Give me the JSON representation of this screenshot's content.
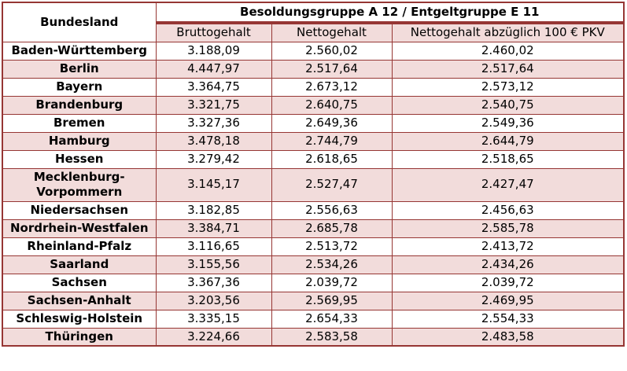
{
  "table": {
    "header": {
      "col_bundesland": "Bundesland",
      "group_title": "Besoldungsgruppe A 12 / Entgeltgruppe E 11",
      "columns": [
        "Bruttogehalt",
        "Nettogehalt",
        "Nettogehalt abzüglich 100 € PKV"
      ]
    },
    "rows": [
      {
        "state": "Baden-Württemberg",
        "brutto": "3.188,09",
        "netto": "2.560,02",
        "netto_pkv": "2.460,02"
      },
      {
        "state": "Berlin",
        "brutto": "4.447,97",
        "netto": "2.517,64",
        "netto_pkv": "2.517,64"
      },
      {
        "state": "Bayern",
        "brutto": "3.364,75",
        "netto": "2.673,12",
        "netto_pkv": "2.573,12"
      },
      {
        "state": "Brandenburg",
        "brutto": "3.321,75",
        "netto": "2.640,75",
        "netto_pkv": "2.540,75"
      },
      {
        "state": "Bremen",
        "brutto": "3.327,36",
        "netto": "2.649,36",
        "netto_pkv": "2.549,36"
      },
      {
        "state": "Hamburg",
        "brutto": "3.478,18",
        "netto": "2.744,79",
        "netto_pkv": "2.644,79"
      },
      {
        "state": "Hessen",
        "brutto": "3.279,42",
        "netto": "2.618,65",
        "netto_pkv": "2.518,65"
      },
      {
        "state": "Mecklenburg-Vorpommern",
        "brutto": "3.145,17",
        "netto": "2.527,47",
        "netto_pkv": "2.427,47"
      },
      {
        "state": "Niedersachsen",
        "brutto": "3.182,85",
        "netto": "2.556,63",
        "netto_pkv": "2.456,63"
      },
      {
        "state": "Nordrhein-Westfalen",
        "brutto": "3.384,71",
        "netto": "2.685,78",
        "netto_pkv": "2.585,78"
      },
      {
        "state": "Rheinland-Pfalz",
        "brutto": "3.116,65",
        "netto": "2.513,72",
        "netto_pkv": "2.413,72"
      },
      {
        "state": "Saarland",
        "brutto": "3.155,56",
        "netto": "2.534,26",
        "netto_pkv": "2.434,26"
      },
      {
        "state": "Sachsen",
        "brutto": "3.367,36",
        "netto": "2.039,72",
        "netto_pkv": "2.039,72"
      },
      {
        "state": "Sachsen-Anhalt",
        "brutto": "3.203,56",
        "netto": "2.569,95",
        "netto_pkv": "2.469,95"
      },
      {
        "state": "Schleswig-Holstein",
        "brutto": "3.335,15",
        "netto": "2.654,33",
        "netto_pkv": "2.554,33"
      },
      {
        "state": "Thüringen",
        "brutto": "3.224,66",
        "netto": "2.583,58",
        "netto_pkv": "2.483,58"
      }
    ],
    "colors": {
      "accent_border": "#963634",
      "row_pink": "#F2DCDB",
      "row_white": "#FFFFFF",
      "text": "#000000"
    }
  }
}
